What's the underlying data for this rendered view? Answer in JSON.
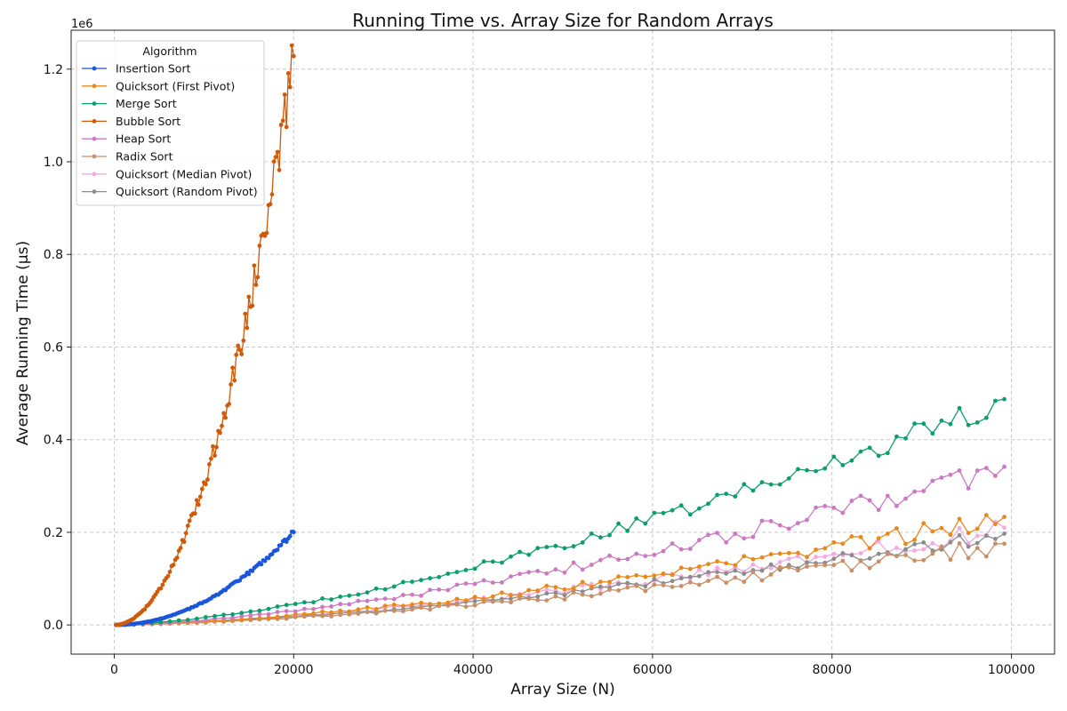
{
  "chart_data": {
    "type": "line",
    "title": "Running Time vs. Array Size for Random Arrays",
    "xlabel": "Array Size (N)",
    "ylabel": "Average Running Time (μs)",
    "y_offset_label": "1e6",
    "xlim": [
      -4800,
      104800
    ],
    "ylim": [
      -63000,
      1284000
    ],
    "x_ticks": [
      0,
      20000,
      40000,
      60000,
      80000,
      100000
    ],
    "x_tick_labels": [
      "0",
      "20000",
      "40000",
      "60000",
      "80000",
      "100000"
    ],
    "y_ticks": [
      0,
      200000,
      400000,
      600000,
      800000,
      1000000,
      1200000
    ],
    "y_tick_labels": [
      "0.0",
      "0.2",
      "0.4",
      "0.6",
      "0.8",
      "1.0",
      "1.2"
    ],
    "grid": true,
    "legend": {
      "title": "Algorithm",
      "placement": "top-left"
    },
    "series": [
      {
        "name": "Insertion Sort",
        "color": "#1a56db",
        "generator": {
          "x_start": 200,
          "x_end": 20000,
          "x_step": 200,
          "coef": 0.0005,
          "exp": 2,
          "noise": 0.03
        }
      },
      {
        "name": "Quicksort (First Pivot)",
        "color": "#e8891c",
        "generator": {
          "x_start": 200,
          "x_end": 100000,
          "x_step": 1000,
          "coef": 0.0074,
          "exp": 1.5,
          "noise": 0.1
        }
      },
      {
        "name": "Merge Sort",
        "color": "#0b9e6e",
        "generator": {
          "x_start": 200,
          "x_end": 100000,
          "x_step": 1000,
          "coef": 0.0155,
          "exp": 1.5,
          "noise": 0.06
        }
      },
      {
        "name": "Bubble Sort",
        "color": "#d05a0a",
        "generator": {
          "x_start": 200,
          "x_end": 20000,
          "x_step": 200,
          "coef": 0.00305,
          "exp": 2,
          "noise": 0.05
        }
      },
      {
        "name": "Heap Sort",
        "color": "#cc78c3",
        "generator": {
          "x_start": 200,
          "x_end": 100000,
          "x_step": 1000,
          "coef": 0.0108,
          "exp": 1.5,
          "noise": 0.08
        }
      },
      {
        "name": "Radix Sort",
        "color": "#c99068",
        "generator": {
          "x_start": 200,
          "x_end": 100000,
          "x_step": 1000,
          "coef": 0.0055,
          "exp": 1.5,
          "noise": 0.12
        }
      },
      {
        "name": "Quicksort (Median Pivot)",
        "color": "#f3a9e1",
        "generator": {
          "x_start": 200,
          "x_end": 100000,
          "x_step": 1000,
          "coef": 0.0066,
          "exp": 1.5,
          "noise": 0.1
        }
      },
      {
        "name": "Quicksort (Random Pivot)",
        "color": "#8c8c8c",
        "generator": {
          "x_start": 200,
          "x_end": 100000,
          "x_step": 1000,
          "coef": 0.0062,
          "exp": 1.5,
          "noise": 0.08
        }
      }
    ]
  }
}
